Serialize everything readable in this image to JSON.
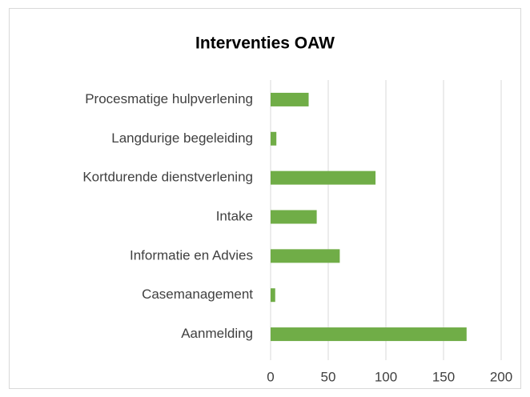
{
  "chart_data": {
    "type": "bar",
    "orientation": "horizontal",
    "title": "Interventies OAW",
    "categories": [
      "Procesmatige hulpverlening",
      "Langdurige begeleiding",
      "Kortdurende dienstverlening",
      "Intake",
      "Informatie en Advies",
      "Casemanagement",
      "Aanmelding"
    ],
    "values": [
      33,
      5,
      91,
      40,
      60,
      4,
      170
    ],
    "color": "#70ad47",
    "xlim": [
      0,
      200
    ],
    "xticks": [
      0,
      50,
      100,
      150,
      200
    ],
    "grid": true
  }
}
